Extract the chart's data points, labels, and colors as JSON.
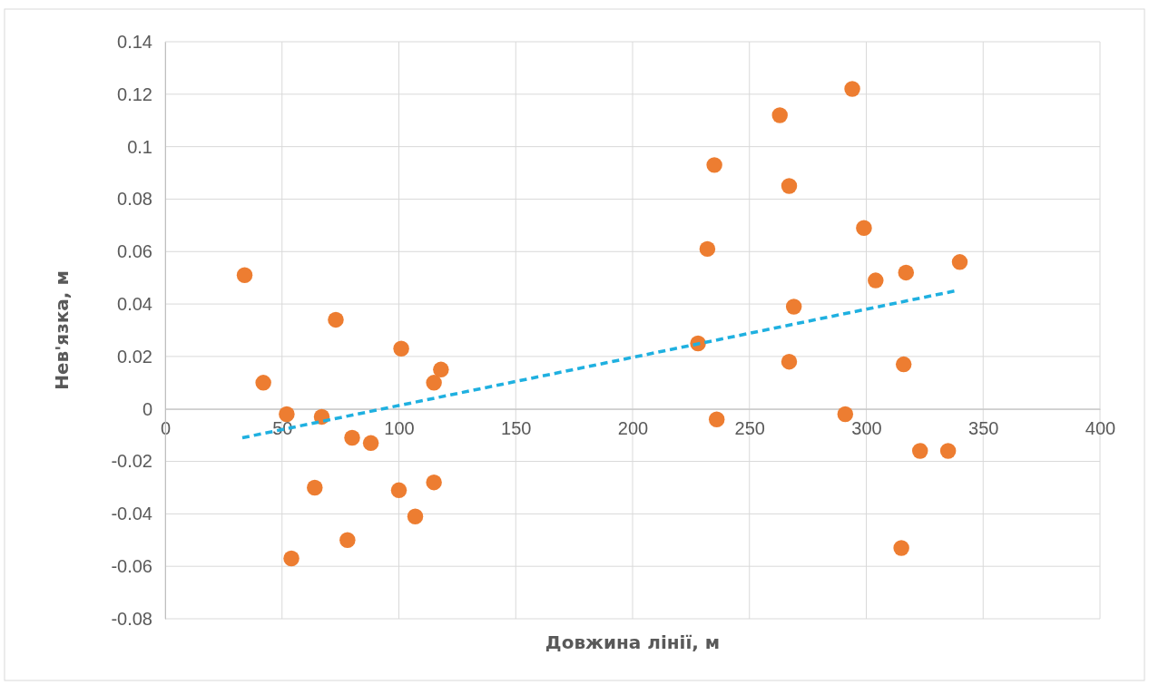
{
  "chart_data": {
    "type": "scatter",
    "xlabel": "Довжина лінії, м",
    "ylabel": "Нев'язка, м",
    "xlim": [
      0,
      400
    ],
    "xticks": [
      0,
      50,
      100,
      150,
      200,
      250,
      300,
      350,
      400
    ],
    "ylim": [
      -0.08,
      0.14
    ],
    "yticks": [
      -0.08,
      -0.06,
      -0.04,
      -0.02,
      0,
      0.02,
      0.04,
      0.06,
      0.08,
      0.1,
      0.12,
      0.14
    ],
    "grid": true,
    "marker": "circle",
    "series": [
      {
        "type": "scatter",
        "color": "#ed7d31",
        "x": [
          34,
          42,
          52,
          67,
          73,
          80,
          88,
          64,
          54,
          78,
          101,
          100,
          107,
          115,
          115,
          118,
          228,
          232,
          235,
          236,
          263,
          267,
          267,
          269,
          291,
          294,
          299,
          304,
          317,
          316,
          315,
          323,
          335,
          340
        ],
        "values": [
          0.051,
          0.01,
          -0.002,
          -0.003,
          0.034,
          -0.011,
          -0.013,
          -0.03,
          -0.057,
          -0.05,
          0.023,
          -0.031,
          -0.041,
          -0.028,
          0.01,
          0.015,
          0.025,
          0.061,
          0.093,
          -0.004,
          0.112,
          0.085,
          0.018,
          0.039,
          -0.002,
          0.122,
          0.069,
          0.049,
          0.052,
          0.017,
          -0.053,
          -0.016,
          -0.016,
          0.056
        ]
      },
      {
        "type": "line",
        "color": "#1fb0e0",
        "line_style": "dashed",
        "marker": "none",
        "x": [
          33,
          338
        ],
        "values": [
          -0.011,
          0.045
        ]
      }
    ]
  }
}
